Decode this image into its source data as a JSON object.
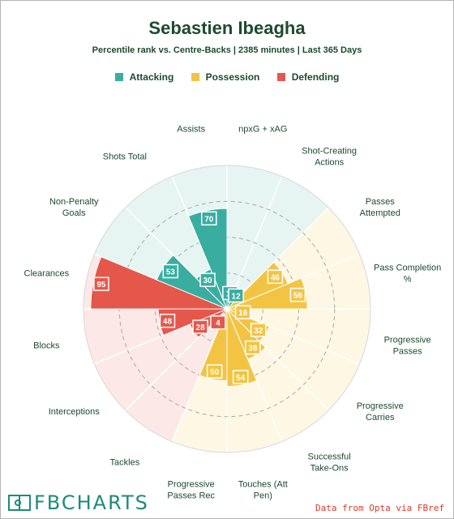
{
  "header": {
    "title": "Sebastien Ibeagha",
    "subtitle": "Percentile rank vs. Centre-Backs | 2385 minutes | Last 365 Days"
  },
  "legend": [
    {
      "label": "Attacking",
      "color": "#3aada1"
    },
    {
      "label": "Possession",
      "color": "#f3c444"
    },
    {
      "label": "Defending",
      "color": "#e5574b"
    }
  ],
  "chart_data": {
    "type": "radar",
    "range": [
      0,
      100
    ],
    "grid": true,
    "categories": [
      {
        "label": "npxG + xAG",
        "group": "Attacking",
        "value": 11
      },
      {
        "label": "Shot-Creating Actions",
        "group": "Attacking",
        "value": 12
      },
      {
        "label": "Passes Attempted",
        "group": "Possession",
        "value": 46
      },
      {
        "label": "Pass Completion %",
        "group": "Possession",
        "value": 56
      },
      {
        "label": "Progressive Passes",
        "group": "Possession",
        "value": 16
      },
      {
        "label": "Progressive Carries",
        "group": "Possession",
        "value": 32
      },
      {
        "label": "Successful Take-Ons",
        "group": "Possession",
        "value": 38
      },
      {
        "label": "Touches (Att Pen)",
        "group": "Possession",
        "value": 54
      },
      {
        "label": "Progressive Passes Rec",
        "group": "Possession",
        "value": 50
      },
      {
        "label": "Tackles",
        "group": "Defending",
        "value": 4
      },
      {
        "label": "Interceptions",
        "group": "Defending",
        "value": 28
      },
      {
        "label": "Blocks",
        "group": "Defending",
        "value": 48
      },
      {
        "label": "Clearances",
        "group": "Defending",
        "value": 95
      },
      {
        "label": "Non-Penalty Goals",
        "group": "Attacking",
        "value": 53
      },
      {
        "label": "Shots Total",
        "group": "Attacking",
        "value": 30
      },
      {
        "label": "Assists",
        "group": "Attacking",
        "value": 70
      }
    ]
  },
  "footer": {
    "brand": "FBCHARTS",
    "source": "Data from Opta via FBref"
  }
}
